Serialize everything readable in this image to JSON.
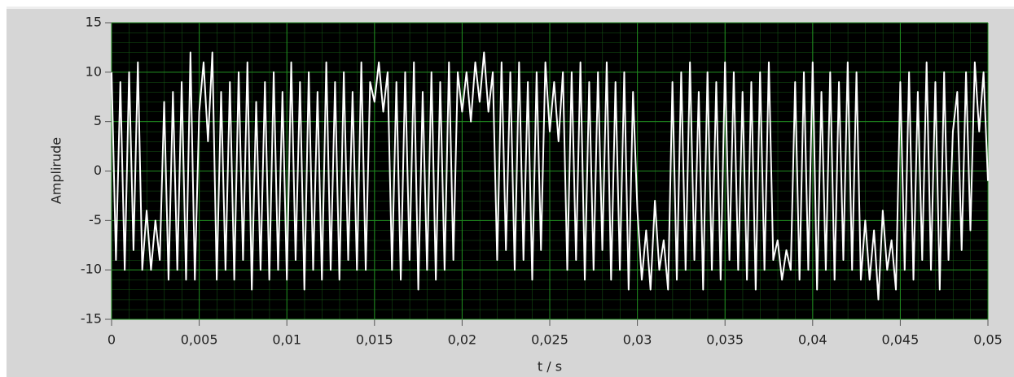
{
  "chart_data": {
    "type": "line",
    "ylabel": "Amplirude",
    "xlabel": "t / s",
    "color": "#ffffff",
    "grid": true,
    "xlim": [
      0,
      0.05
    ],
    "ylim": [
      -15,
      15
    ],
    "yticks": [
      -15,
      -10,
      -5,
      0,
      5,
      10,
      15
    ],
    "xticks": [
      0,
      {
        "value": 0.005,
        "label": "0,005"
      },
      {
        "value": 0.01,
        "label": "0,01"
      },
      {
        "value": 0.015,
        "label": "0,015"
      },
      {
        "value": 0.02,
        "label": "0,02"
      },
      {
        "value": 0.025,
        "label": "0,025"
      },
      {
        "value": 0.03,
        "label": "0,03"
      },
      {
        "value": 0.035,
        "label": "0,035"
      },
      {
        "value": 0.04,
        "label": "0,04"
      },
      {
        "value": 0.045,
        "label": "0,045"
      },
      {
        "value": 0.05,
        "label": "0,05"
      }
    ],
    "x": [
      0,
      0.00025,
      0.0005,
      0.00075,
      0.001,
      0.00125,
      0.0015,
      0.00175,
      0.002,
      0.00225,
      0.0025,
      0.00275,
      0.003,
      0.00325,
      0.0035,
      0.00375,
      0.004,
      0.00425,
      0.0045,
      0.00475,
      0.005,
      0.00525,
      0.0055,
      0.00575,
      0.006,
      0.00625,
      0.0065,
      0.00675,
      0.007,
      0.00725,
      0.0075,
      0.00775,
      0.008,
      0.00825,
      0.0085,
      0.00875,
      0.009,
      0.00925,
      0.0095,
      0.00975,
      0.01,
      0.01025,
      0.0105,
      0.01075,
      0.011,
      0.01125,
      0.0115,
      0.01175,
      0.012,
      0.01225,
      0.0125,
      0.01275,
      0.013,
      0.01325,
      0.0135,
      0.01375,
      0.014,
      0.01425,
      0.0145,
      0.01475,
      0.015,
      0.01525,
      0.0155,
      0.01575,
      0.016,
      0.01625,
      0.0165,
      0.01675,
      0.017,
      0.01725,
      0.0175,
      0.01775,
      0.018,
      0.01825,
      0.0185,
      0.01875,
      0.019,
      0.01925,
      0.0195,
      0.01975,
      0.02,
      0.02025,
      0.0205,
      0.02075,
      0.021,
      0.02125,
      0.0215,
      0.02175,
      0.022,
      0.02225,
      0.0225,
      0.02275,
      0.023,
      0.02325,
      0.0235,
      0.02375,
      0.024,
      0.02425,
      0.0245,
      0.02475,
      0.025,
      0.02525,
      0.0255,
      0.02575,
      0.026,
      0.02625,
      0.0265,
      0.02675,
      0.027,
      0.02725,
      0.0275,
      0.02775,
      0.028,
      0.02825,
      0.0285,
      0.02875,
      0.029,
      0.02925,
      0.0295,
      0.02975,
      0.03,
      0.03025,
      0.0305,
      0.03075,
      0.031,
      0.03125,
      0.0315,
      0.03175,
      0.032,
      0.03225,
      0.0325,
      0.03275,
      0.033,
      0.03325,
      0.0335,
      0.03375,
      0.034,
      0.03425,
      0.0345,
      0.03475,
      0.035,
      0.03525,
      0.0355,
      0.03575,
      0.036,
      0.03625,
      0.0365,
      0.03675,
      0.037,
      0.03725,
      0.0375,
      0.03775,
      0.038,
      0.03825,
      0.0385,
      0.03875,
      0.039,
      0.03925,
      0.0395,
      0.03975,
      0.04,
      0.04025,
      0.0405,
      0.04075,
      0.041,
      0.04125,
      0.0415,
      0.04175,
      0.042,
      0.04225,
      0.0425,
      0.04275,
      0.043,
      0.04325,
      0.0435,
      0.04375,
      0.044,
      0.04425,
      0.0445,
      0.04475,
      0.045,
      0.04525,
      0.0455,
      0.04575,
      0.046,
      0.04625,
      0.0465,
      0.04675,
      0.047,
      0.04725,
      0.0475,
      0.04775,
      0.048,
      0.04825,
      0.0485,
      0.04875,
      0.049,
      0.04925,
      0.0495,
      0.04975,
      0.05
    ],
    "values": [
      10,
      -9,
      9,
      -10,
      10,
      -8,
      11,
      -10,
      -4,
      -10,
      -5,
      -9,
      7,
      -11,
      8,
      -10,
      9,
      -11,
      12,
      -11,
      6,
      11,
      3,
      12,
      -11,
      8,
      -10,
      9,
      -11,
      10,
      -9,
      11,
      -12,
      7,
      -10,
      9,
      -11,
      10,
      -10,
      8,
      -11,
      11,
      -9,
      9,
      -12,
      10,
      -10,
      8,
      -11,
      11,
      -10,
      9,
      -11,
      10,
      -9,
      8,
      -10,
      11,
      -10,
      9,
      7,
      11,
      6,
      10,
      -10,
      9,
      -11,
      10,
      -9,
      11,
      -12,
      8,
      -10,
      10,
      -11,
      9,
      -10,
      11,
      -9,
      10,
      6,
      10,
      5,
      11,
      7,
      12,
      6,
      10,
      -9,
      11,
      -8,
      10,
      -10,
      11,
      -9,
      9,
      -11,
      10,
      -8,
      11,
      4,
      9,
      3,
      10,
      -10,
      10,
      -9,
      11,
      -11,
      9,
      -10,
      10,
      -8,
      11,
      -11,
      9,
      -10,
      10,
      -12,
      8,
      -4,
      -11,
      -6,
      -12,
      -3,
      -10,
      -7,
      -12,
      9,
      -11,
      10,
      -10,
      11,
      -9,
      8,
      -12,
      10,
      -10,
      9,
      -11,
      11,
      -9,
      10,
      -10,
      8,
      -11,
      9,
      -12,
      10,
      -10,
      11,
      -9,
      -7,
      -11,
      -8,
      -10,
      9,
      -11,
      10,
      -10,
      11,
      -12,
      8,
      -10,
      10,
      -11,
      9,
      -9,
      11,
      -10,
      10,
      -11,
      -5,
      -11,
      -6,
      -13,
      -4,
      -10,
      -7,
      -12,
      9,
      -10,
      10,
      -11,
      8,
      -9,
      11,
      -10,
      9,
      -12,
      10,
      -9,
      4,
      8,
      -8,
      10,
      -6,
      11,
      4,
      10,
      -1
    ]
  }
}
